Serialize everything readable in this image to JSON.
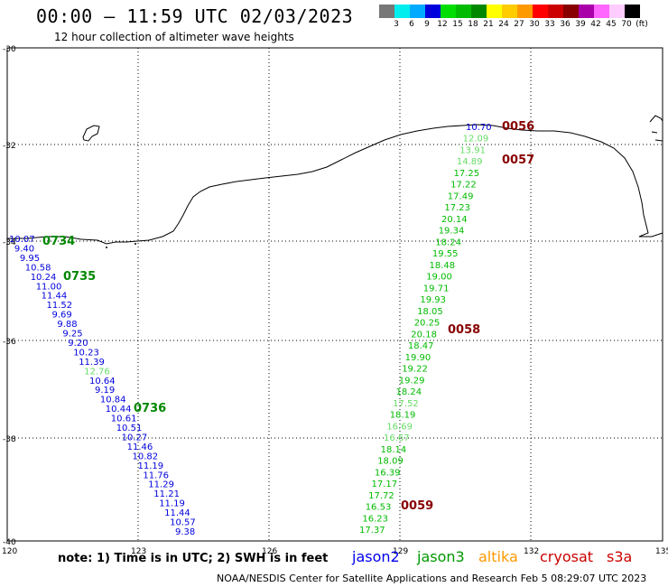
{
  "header": {
    "title": "00:00 — 11:59 UTC 02/03/2023",
    "subtitle": "12 hour collection of altimeter wave heights"
  },
  "legend": {
    "colors": [
      "#777777",
      "#00eeee",
      "#00aaff",
      "#0000dd",
      "#00dd00",
      "#00bb00",
      "#008800",
      "#ffff00",
      "#ffcc00",
      "#ff9900",
      "#ff0000",
      "#cc0000",
      "#880000",
      "#aa00aa",
      "#ff66ff",
      "#ffccff",
      "#000000"
    ],
    "labels": [
      "3",
      "6",
      "9",
      "12",
      "15",
      "18",
      "21",
      "24",
      "27",
      "30",
      "33",
      "36",
      "39",
      "42",
      "45",
      "70",
      "(ft)"
    ]
  },
  "axes": {
    "lon_labels": [
      "120",
      "123",
      "126",
      "129",
      "132",
      "135"
    ],
    "lat_labels": [
      "-30",
      "-32",
      "-34",
      "-36",
      "-38",
      "-40"
    ]
  },
  "tracks": {
    "jason2_values": [
      "10.07",
      "9.40",
      "9.95",
      "10.58",
      "10.24",
      "11.00",
      "11.44",
      "11.52",
      "9.69",
      "9.88",
      "9.25",
      "9.20",
      "10.23",
      "11.39",
      "12.76",
      "10.64",
      "9.19",
      "10.84",
      "10.44",
      "10.61",
      "10.51",
      "10.27",
      "11.46",
      "10.82",
      "11.19",
      "11.76",
      "11.29",
      "11.21",
      "11.19",
      "11.44",
      "10.57",
      "9.38"
    ],
    "jason2_colors": [
      "#0000dd",
      "#0000dd",
      "#0000dd",
      "#0000dd",
      "#0000dd",
      "#0000dd",
      "#0000dd",
      "#0000dd",
      "#0000dd",
      "#0000dd",
      "#0000dd",
      "#0000dd",
      "#0000dd",
      "#0000dd",
      "#66dd66",
      "#0000dd",
      "#0000dd",
      "#0000dd",
      "#0000dd",
      "#0000dd",
      "#0000dd",
      "#0000dd",
      "#0000dd",
      "#0000dd",
      "#0000dd",
      "#0000dd",
      "#0000dd",
      "#0000dd",
      "#0000dd",
      "#0000dd",
      "#0000dd",
      "#0000dd"
    ],
    "jason3_values": [
      "10.70",
      "12.09",
      "13.91",
      "14.89",
      "17.25",
      "17.22",
      "17.49",
      "17.23",
      "20.14",
      "19.34",
      "18.24",
      "19.55",
      "18.48",
      "19.00",
      "19.71",
      "19.93",
      "18.05",
      "20.25",
      "20.18",
      "18.47",
      "19.90",
      "19.22",
      "19.29",
      "18.24",
      "17.52",
      "18.19",
      "16.69",
      "16.67",
      "18.14",
      "18.09",
      "16.39",
      "17.17",
      "17.72",
      "16.53",
      "16.23",
      "17.37"
    ],
    "jason3_colors": [
      "#0000dd",
      "#66dd66",
      "#66dd66",
      "#66dd66",
      "#00bb00",
      "#00bb00",
      "#00bb00",
      "#00bb00",
      "#00bb00",
      "#00bb00",
      "#00bb00",
      "#00bb00",
      "#00bb00",
      "#00bb00",
      "#00bb00",
      "#00bb00",
      "#00bb00",
      "#00bb00",
      "#00bb00",
      "#00bb00",
      "#00bb00",
      "#00bb00",
      "#00bb00",
      "#00bb00",
      "#66dd66",
      "#00bb00",
      "#66dd66",
      "#66dd66",
      "#00bb00",
      "#00bb00",
      "#00bb00",
      "#00bb00",
      "#00bb00",
      "#00bb00",
      "#00bb00",
      "#00bb00"
    ],
    "time_labels": [
      {
        "text": "0734",
        "color": "#008800"
      },
      {
        "text": "0735",
        "color": "#008800"
      },
      {
        "text": "0736",
        "color": "#008800"
      },
      {
        "text": "0056",
        "color": "#880000"
      },
      {
        "text": "0057",
        "color": "#880000"
      },
      {
        "text": "0058",
        "color": "#880000"
      },
      {
        "text": "0059",
        "color": "#880000"
      }
    ]
  },
  "note": "note: 1) Time is in UTC; 2) SWH is in feet",
  "satellites": [
    {
      "name": "jason2",
      "color": "#0000ee"
    },
    {
      "name": "jason3",
      "color": "#009900"
    },
    {
      "name": "altika",
      "color": "#ff9900"
    },
    {
      "name": "cryosat",
      "color": "#cc0000"
    },
    {
      "name": "s3a",
      "color": "#cc0000"
    }
  ],
  "footer": "NOAA/NESDIS Center for Satellite Applications and Research   Feb  5 08:29:07 UTC 2023"
}
